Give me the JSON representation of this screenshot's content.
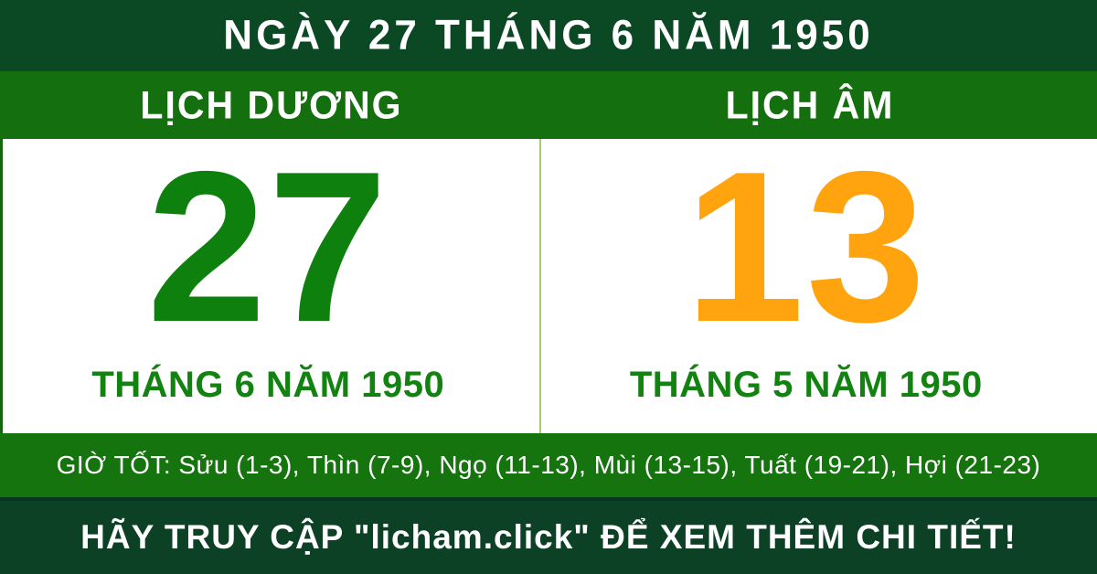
{
  "header": {
    "title": "NGÀY 27 THÁNG 6 NĂM 1950"
  },
  "calendars": {
    "solar": {
      "label": "LỊCH DƯƠNG",
      "day": "27",
      "month_year": "THÁNG 6 NĂM 1950"
    },
    "lunar": {
      "label": "LỊCH ÂM",
      "day": "13",
      "month_year": "THÁNG 5 NĂM 1950"
    }
  },
  "good_hours": {
    "text": "GIỜ TỐT: Sửu (1-3), Thìn (7-9), Ngọ (11-13), Mùi (13-15), Tuất (19-21), Hợi (21-23)"
  },
  "footer": {
    "text": "HÃY TRUY CẬP \"licham.click\" ĐỂ XEM THÊM CHI TIẾT!"
  },
  "colors": {
    "header_bg": "#0B4824",
    "band_bg": "#146F0E",
    "hours_bg": "#16740F",
    "footer_bg": "#0C4126",
    "footer_seam": "#093620",
    "panel_bg": "#FFFFFF",
    "text_white": "#FFFFFF",
    "solar_day": "#0D800D",
    "lunar_day": "#FFA40E",
    "month_text": "#128310",
    "divider": "#A3D06B",
    "left_border": "#15650F"
  }
}
